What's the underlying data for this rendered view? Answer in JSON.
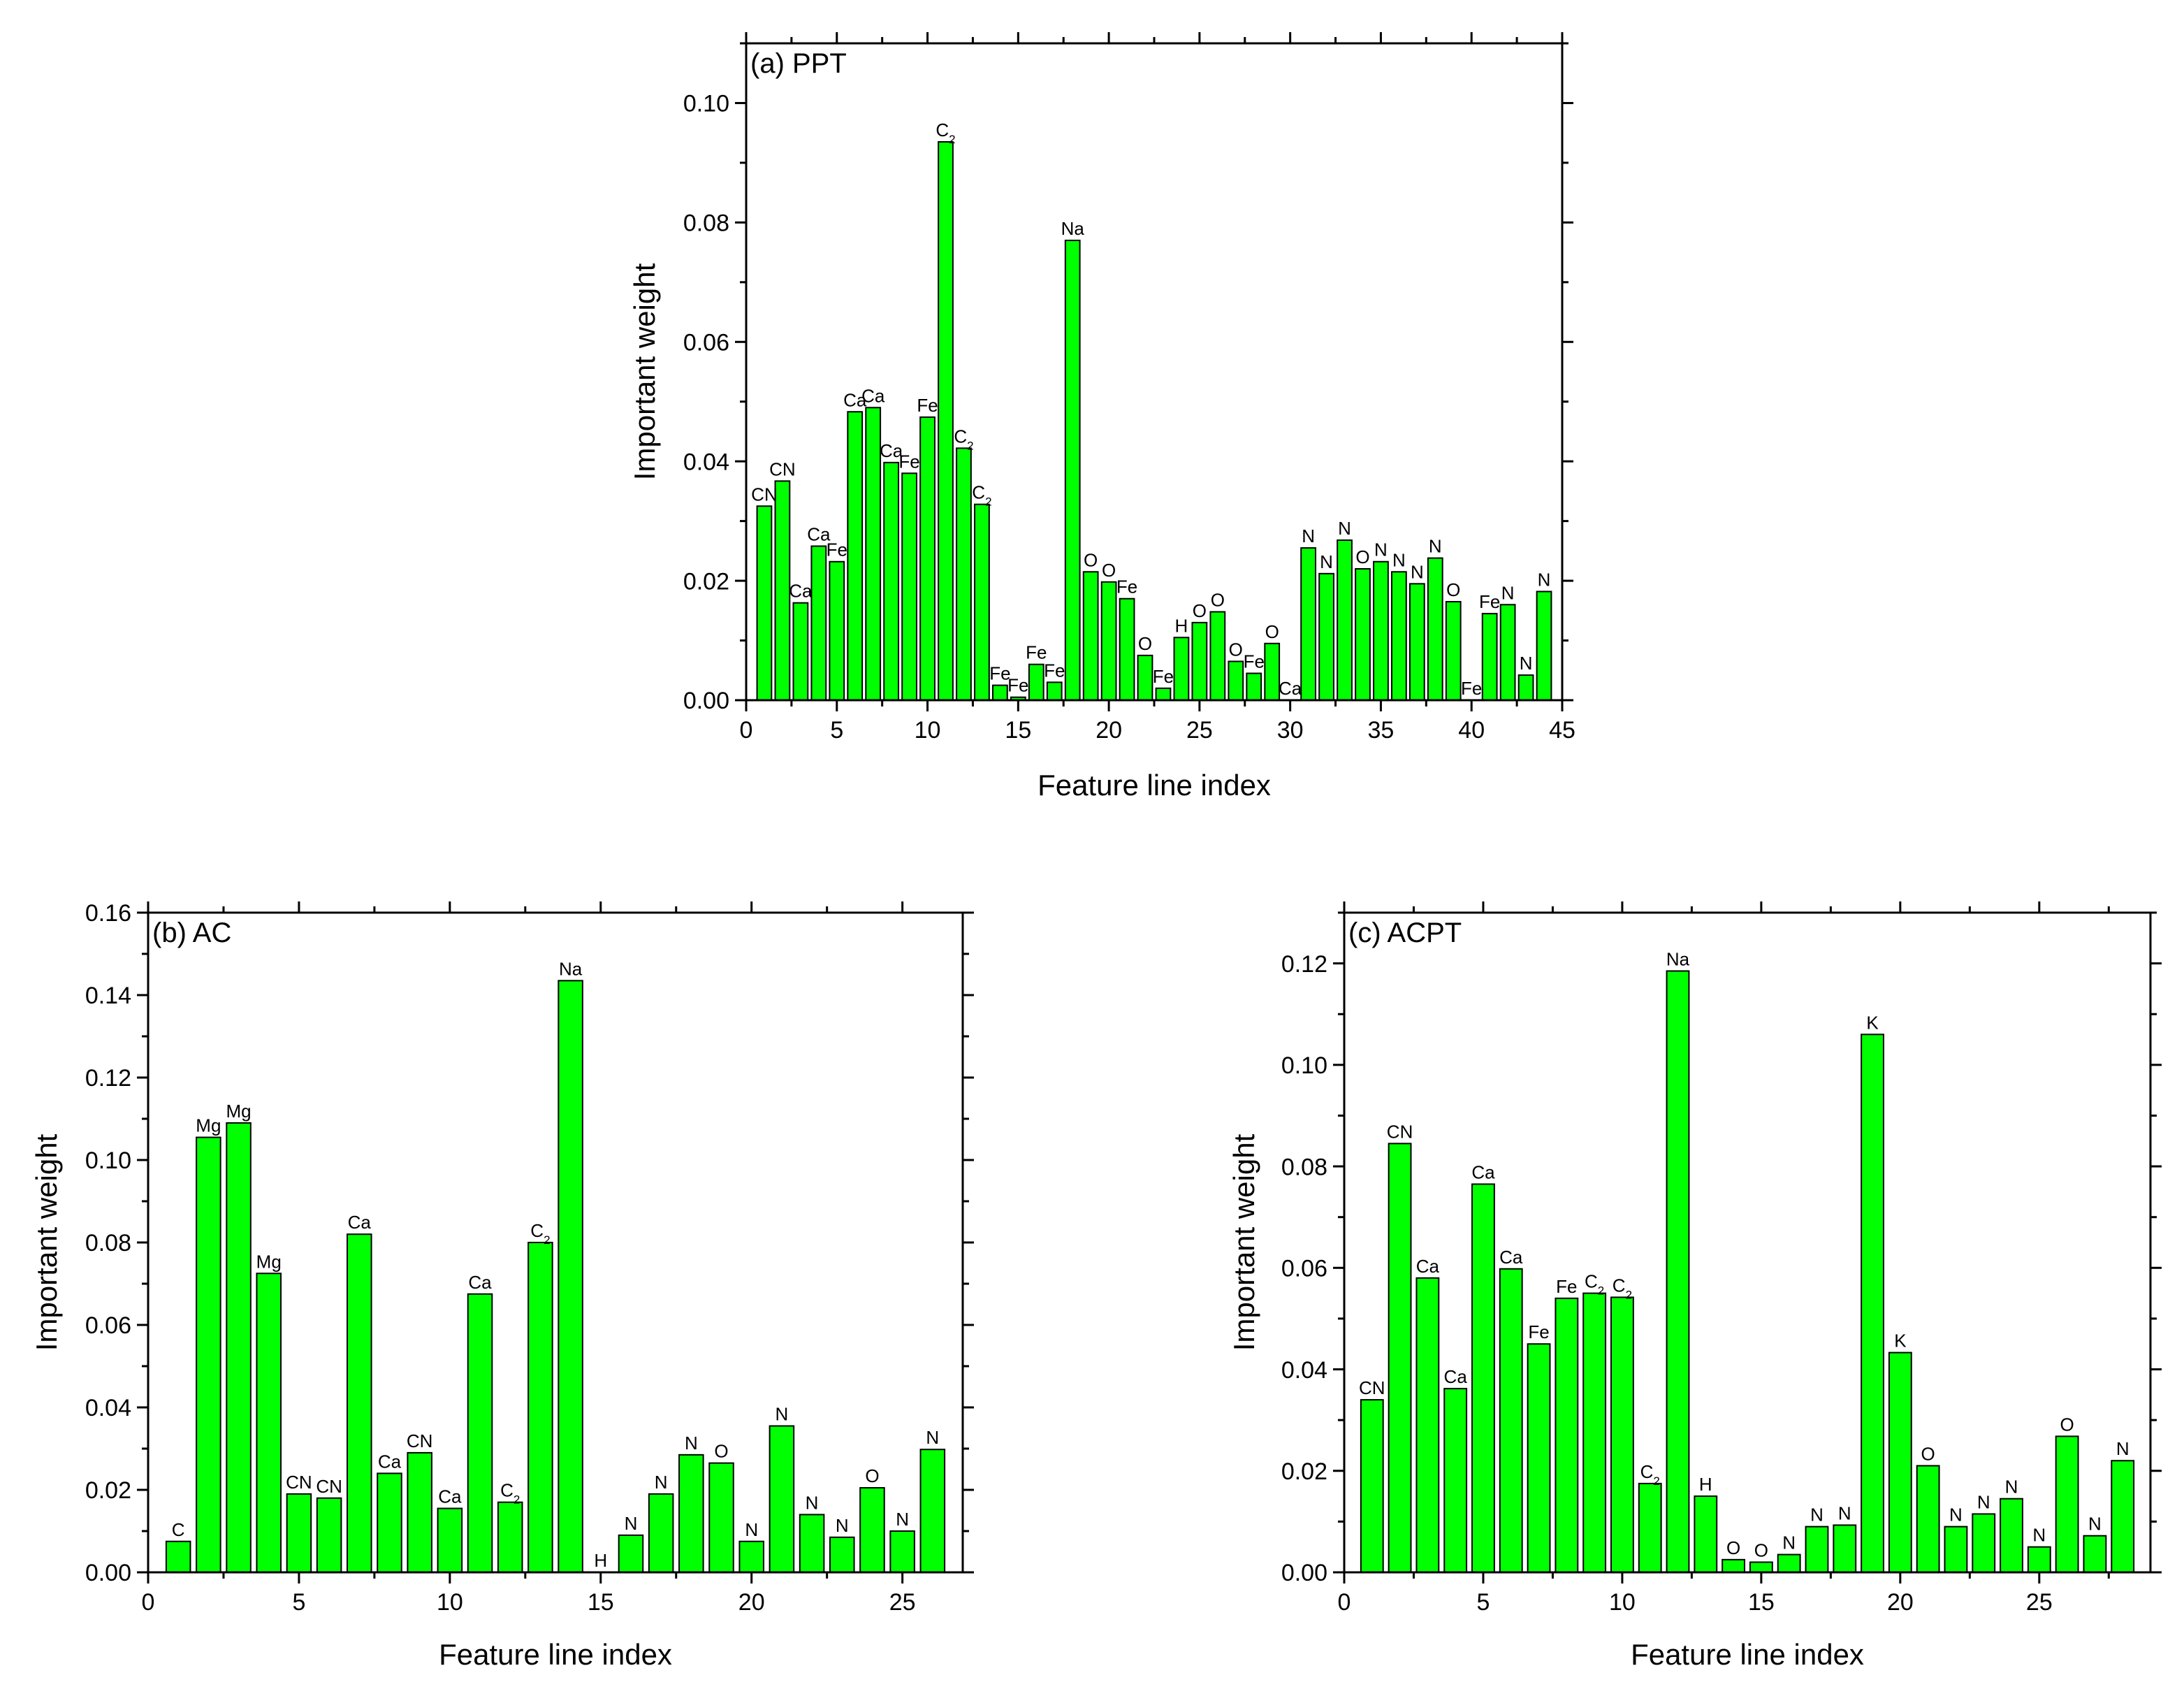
{
  "colors": {
    "bar_fill": "#00ff00",
    "bar_stroke": "#000000",
    "axis": "#000000",
    "background": "#ffffff"
  },
  "chart_data": [
    {
      "id": "ppt",
      "type": "bar",
      "title": "(a) PPT",
      "xlabel": "Feature line index",
      "ylabel": "Important weight",
      "xlim": [
        0,
        45
      ],
      "ylim": [
        0,
        0.11
      ],
      "xticks": [
        0,
        5,
        10,
        15,
        20,
        25,
        30,
        35,
        40,
        45
      ],
      "yticks": [
        0.0,
        0.02,
        0.04,
        0.06,
        0.08,
        0.1
      ],
      "ytick_labels": [
        "0.00",
        "0.02",
        "0.04",
        "0.06",
        "0.08",
        "0.10"
      ],
      "grid": false,
      "x": [
        1,
        2,
        3,
        4,
        5,
        6,
        7,
        8,
        9,
        10,
        11,
        12,
        13,
        14,
        15,
        16,
        17,
        18,
        19,
        20,
        21,
        22,
        23,
        24,
        25,
        26,
        27,
        28,
        29,
        30,
        31,
        32,
        33,
        34,
        35,
        36,
        37,
        38,
        39,
        40,
        41,
        42,
        43,
        44
      ],
      "values": [
        0.0325,
        0.0367,
        0.0163,
        0.0258,
        0.0232,
        0.0483,
        0.049,
        0.0398,
        0.038,
        0.0474,
        0.0935,
        0.0422,
        0.0328,
        0.0025,
        0.0005,
        0.006,
        0.003,
        0.077,
        0.0215,
        0.0198,
        0.017,
        0.0075,
        0.002,
        0.0105,
        0.013,
        0.0148,
        0.0065,
        0.0045,
        0.0095,
        0.0,
        0.0255,
        0.0212,
        0.0268,
        0.022,
        0.0232,
        0.0215,
        0.0195,
        0.0238,
        0.0165,
        0.0,
        0.0145,
        0.016,
        0.0042,
        0.0182
      ],
      "labels": [
        "CN",
        "CN",
        "Ca",
        "Ca",
        "Fe",
        "Ca",
        "Ca",
        "Ca",
        "Fe",
        "Fe",
        "C2",
        "C2",
        "C2",
        "Fe",
        "Fe",
        "Fe",
        "Fe",
        "Na",
        "O",
        "O",
        "Fe",
        "O",
        "Fe",
        "H",
        "O",
        "O",
        "O",
        "Fe",
        "O",
        "Ca",
        "N",
        "N",
        "N",
        "O",
        "N",
        "N",
        "N",
        "N",
        "O",
        "Fe",
        "Fe",
        "N",
        "N",
        "N"
      ]
    },
    {
      "id": "ac",
      "type": "bar",
      "title": "(b) AC",
      "xlabel": "Feature line index",
      "ylabel": "Important weight",
      "xlim": [
        0,
        27
      ],
      "ylim": [
        0,
        0.16
      ],
      "xticks": [
        0,
        5,
        10,
        15,
        20,
        25
      ],
      "yticks": [
        0.0,
        0.02,
        0.04,
        0.06,
        0.08,
        0.1,
        0.12,
        0.14,
        0.16
      ],
      "ytick_labels": [
        "0.00",
        "0.02",
        "0.04",
        "0.06",
        "0.08",
        "0.10",
        "0.12",
        "0.14",
        "0.16"
      ],
      "grid": false,
      "x": [
        1,
        2,
        3,
        4,
        5,
        6,
        7,
        8,
        9,
        10,
        11,
        12,
        13,
        14,
        15,
        16,
        17,
        18,
        19,
        20,
        21,
        22,
        23,
        24,
        25,
        26
      ],
      "values": [
        0.0075,
        0.1055,
        0.109,
        0.0725,
        0.019,
        0.018,
        0.082,
        0.024,
        0.029,
        0.0155,
        0.0675,
        0.017,
        0.08,
        0.1435,
        0.0,
        0.009,
        0.019,
        0.0285,
        0.0265,
        0.0075,
        0.0355,
        0.014,
        0.0085,
        0.0205,
        0.01,
        0.0298
      ],
      "labels": [
        "C",
        "Mg",
        "Mg",
        "Mg",
        "CN",
        "CN",
        "Ca",
        "Ca",
        "CN",
        "Ca",
        "Ca",
        "C2",
        "C2",
        "Na",
        "H",
        "N",
        "N",
        "N",
        "O",
        "N",
        "N",
        "N",
        "N",
        "O",
        "N",
        "N"
      ]
    },
    {
      "id": "acpt",
      "type": "bar",
      "title": "(c) ACPT",
      "xlabel": "Feature line index",
      "ylabel": "Important weight",
      "xlim": [
        0,
        29
      ],
      "ylim": [
        0,
        0.13
      ],
      "xticks": [
        0,
        5,
        10,
        15,
        20,
        25
      ],
      "yticks": [
        0.0,
        0.02,
        0.04,
        0.06,
        0.08,
        0.1,
        0.12
      ],
      "ytick_labels": [
        "0.00",
        "0.02",
        "0.04",
        "0.06",
        "0.08",
        "0.10",
        "0.12"
      ],
      "grid": false,
      "x": [
        1,
        2,
        3,
        4,
        5,
        6,
        7,
        8,
        9,
        10,
        11,
        12,
        13,
        14,
        15,
        16,
        17,
        18,
        19,
        20,
        21,
        22,
        23,
        24,
        25,
        26,
        27,
        28
      ],
      "values": [
        0.034,
        0.0845,
        0.058,
        0.0362,
        0.0765,
        0.0598,
        0.045,
        0.054,
        0.055,
        0.0542,
        0.0175,
        0.1185,
        0.015,
        0.0025,
        0.002,
        0.0035,
        0.009,
        0.0093,
        0.106,
        0.0433,
        0.021,
        0.009,
        0.0115,
        0.0145,
        0.005,
        0.0268,
        0.0072,
        0.022
      ],
      "labels": [
        "CN",
        "CN",
        "Ca",
        "Ca",
        "Ca",
        "Ca",
        "Fe",
        "Fe",
        "C2",
        "C2",
        "C2",
        "Na",
        "H",
        "O",
        "O",
        "N",
        "N",
        "N",
        "K",
        "K",
        "O",
        "N",
        "N",
        "N",
        "N",
        "O",
        "N",
        "N"
      ]
    }
  ]
}
